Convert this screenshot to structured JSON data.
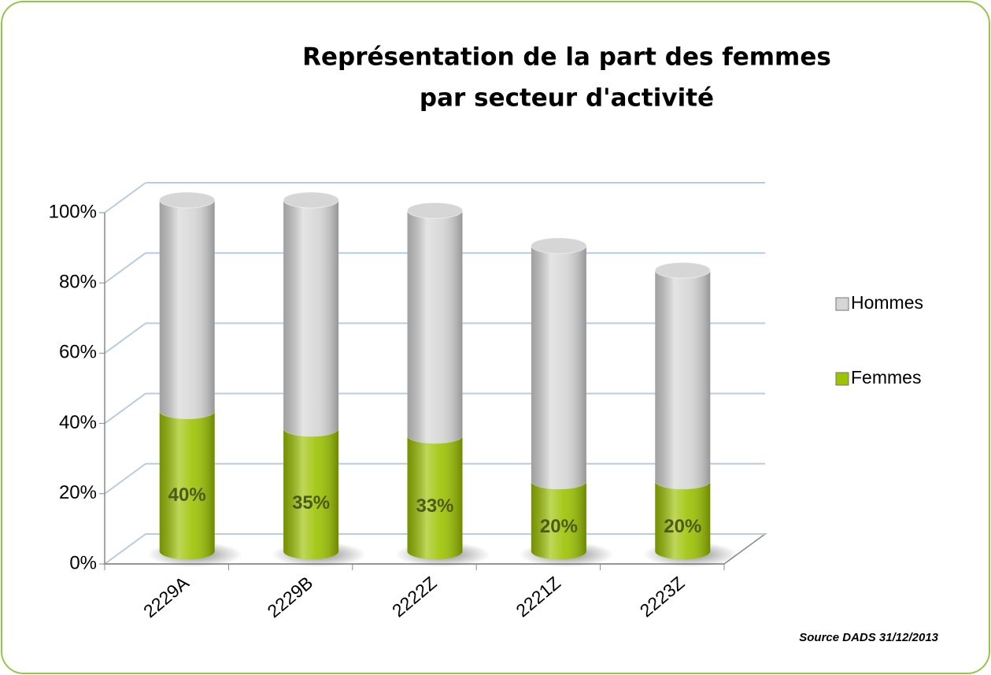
{
  "chart_data": {
    "type": "bar3d_stacked_cylinder",
    "title": [
      "Représentation de la part des femmes",
      "par secteur d'activité"
    ],
    "categories": [
      "2229A",
      "2229B",
      "2222Z",
      "2221Z",
      "2223Z"
    ],
    "series": [
      {
        "name": "Femmes",
        "color": "#9cc200",
        "values": [
          40,
          35,
          33,
          20,
          20
        ],
        "value_labels": [
          "40%",
          "35%",
          "33%",
          "20%",
          "20%"
        ]
      },
      {
        "name": "Hommes",
        "color": "#d6d6d6",
        "values": [
          60,
          65,
          64,
          67,
          60
        ]
      }
    ],
    "stacked": true,
    "ylim": [
      0,
      100
    ],
    "yticks": [
      {
        "value": 0,
        "label": "0%"
      },
      {
        "value": 20,
        "label": "20%"
      },
      {
        "value": 40,
        "label": "40%"
      },
      {
        "value": 60,
        "label": "60%"
      },
      {
        "value": 80,
        "label": "80%"
      },
      {
        "value": 100,
        "label": "100%"
      }
    ],
    "grid": true,
    "legend": "right",
    "annotation": "Source DADS  31/12/2013"
  }
}
